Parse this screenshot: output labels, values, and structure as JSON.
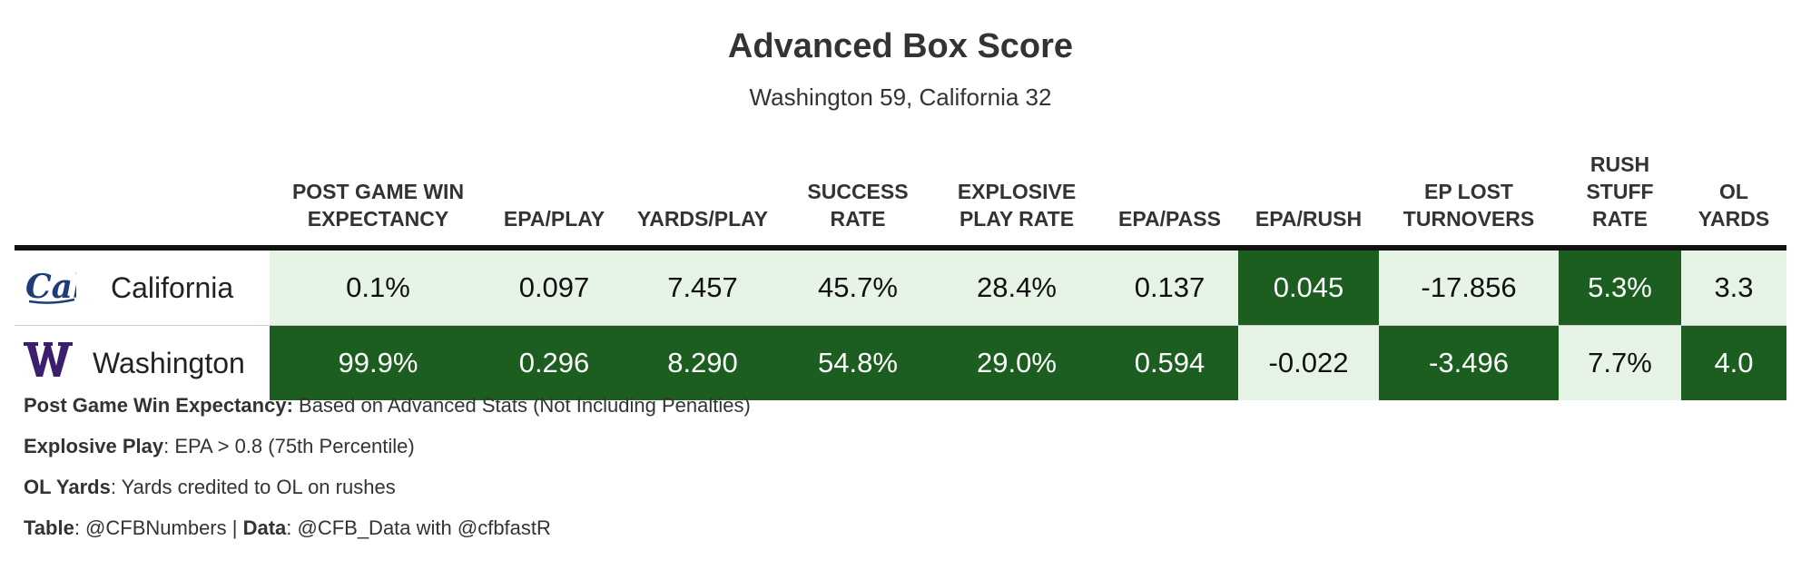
{
  "title": "Advanced Box Score",
  "subtitle": "Washington 59, California 32",
  "colors": {
    "light": "#e6f4e6",
    "dark": "#1b5e20",
    "text_dark": "#111111",
    "text_light": "#ffffff"
  },
  "chart_data": {
    "type": "table",
    "columns": [
      "POST GAME WIN EXPECTANCY",
      "EPA/PLAY",
      "YARDS/PLAY",
      "SUCCESS RATE",
      "EXPLOSIVE PLAY RATE",
      "EPA/PASS",
      "EPA/RUSH",
      "EP LOST TURNOVERS",
      "RUSH STUFF RATE",
      "OL YARDS"
    ],
    "rows": [
      {
        "team": "California",
        "logo": "cal-logo",
        "values": [
          "0.1%",
          "0.097",
          "7.457",
          "45.7%",
          "28.4%",
          "0.137",
          "0.045",
          "-17.856",
          "5.3%",
          "3.3"
        ],
        "shade": [
          "light",
          "light",
          "light",
          "light",
          "light",
          "light",
          "dark",
          "light",
          "dark",
          "light"
        ]
      },
      {
        "team": "Washington",
        "logo": "washington-w-logo",
        "values": [
          "99.9%",
          "0.296",
          "8.290",
          "54.8%",
          "29.0%",
          "0.594",
          "-0.022",
          "-3.496",
          "7.7%",
          "4.0"
        ],
        "shade": [
          "dark",
          "dark",
          "dark",
          "dark",
          "dark",
          "dark",
          "light",
          "dark",
          "light",
          "dark"
        ]
      }
    ]
  },
  "notes": [
    {
      "bold": "Post Game Win Expectancy:",
      "text": " Based on Advanced Stats (Not Including Penalties)"
    },
    {
      "bold": "Explosive Play",
      "text": ": EPA > 0.8 (75th Percentile)"
    },
    {
      "bold": "OL Yards",
      "text": ": Yards credited to OL on rushes"
    }
  ],
  "credits": {
    "table_label": "Table",
    "table_text": ": @CFBNumbers | ",
    "data_label": "Data",
    "data_text": ": @CFB_Data with @cfbfastR"
  }
}
